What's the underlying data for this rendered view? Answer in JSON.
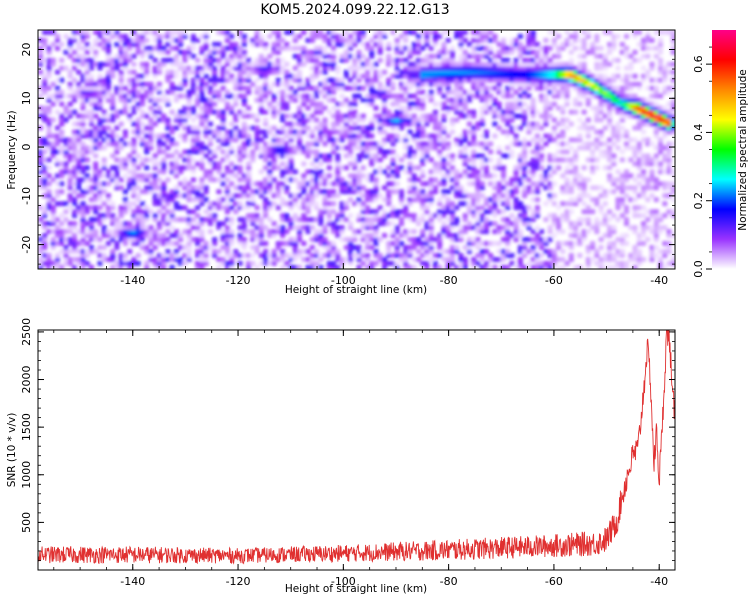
{
  "figure_title": "KOM5.2024.099.22.12.G13",
  "chart_data": [
    {
      "type": "heatmap",
      "title": "KOM5.2024.099.22.12.G13",
      "xlabel": "Height of straight line (km)",
      "ylabel": "Frequency (Hz)",
      "xlim": [
        -158,
        -37
      ],
      "ylim": [
        -25,
        24
      ],
      "x_ticks": [
        -140,
        -120,
        -100,
        -80,
        -60,
        -40
      ],
      "y_ticks": [
        -20,
        -10,
        0,
        10,
        20
      ],
      "x_tick_labels": [
        "-140",
        "-120",
        "-100",
        "-80",
        "-60",
        "-40"
      ],
      "y_tick_labels": [
        "-20",
        "-10",
        "0",
        "10",
        "20"
      ],
      "grid": false,
      "colormap": "gist_rainbow",
      "colorbar": {
        "label": "Normalized spectral amplitude",
        "range": [
          0.0,
          0.7
        ],
        "ticks": [
          0.0,
          0.2,
          0.4,
          0.6
        ],
        "tick_labels": [
          "0.0",
          "0.2",
          "0.4",
          "0.6"
        ],
        "colors": [
          "#ffffff",
          "#9933ff",
          "#0000ff",
          "#00ffff",
          "#00ff00",
          "#ffff00",
          "#ff8800",
          "#ff0000",
          "#ff0088"
        ]
      },
      "ridge": [
        {
          "x": -85,
          "y": 15,
          "amplitude": 0.25
        },
        {
          "x": -75,
          "y": 15.5,
          "amplitude": 0.22
        },
        {
          "x": -66,
          "y": 15,
          "amplitude": 0.18
        },
        {
          "x": -60,
          "y": 15,
          "amplitude": 0.3
        },
        {
          "x": -57,
          "y": 15,
          "amplitude": 0.55
        },
        {
          "x": -53,
          "y": 13,
          "amplitude": 0.45
        },
        {
          "x": -50,
          "y": 11,
          "amplitude": 0.4
        },
        {
          "x": -47,
          "y": 9,
          "amplitude": 0.3
        },
        {
          "x": -44,
          "y": 8,
          "amplitude": 0.6
        },
        {
          "x": -41,
          "y": 6.5,
          "amplitude": 0.68
        },
        {
          "x": -38,
          "y": 5,
          "amplitude": 0.6
        }
      ],
      "isolated_blobs": [
        {
          "x": -90,
          "y": 5.5,
          "amplitude": 0.25
        },
        {
          "x": -140,
          "y": -17.5,
          "amplitude": 0.25
        },
        {
          "x": -112,
          "y": -0.5,
          "amplitude": 0.18
        },
        {
          "x": -115,
          "y": 16,
          "amplitude": 0.15
        },
        {
          "x": -148,
          "y": 11,
          "amplitude": 0.12
        }
      ],
      "background": "speckled low-amplitude noise, values 0.02-0.12"
    },
    {
      "type": "line",
      "xlabel": "Height of straight line (km)",
      "ylabel": "SNR (10 * v/v)",
      "xlim": [
        -158,
        -37
      ],
      "ylim": [
        0,
        2520
      ],
      "x_ticks": [
        -140,
        -120,
        -100,
        -80,
        -60,
        -40
      ],
      "y_ticks": [
        500,
        1000,
        1500,
        2000,
        2500
      ],
      "x_tick_labels": [
        "-140",
        "-120",
        "-100",
        "-80",
        "-60",
        "-40"
      ],
      "y_tick_labels": [
        "500",
        "1000",
        "1500",
        "2000",
        "2500"
      ],
      "grid": false,
      "line_color": "#e03030",
      "series": [
        {
          "x": [
            -158,
            -140,
            -120,
            -100,
            -80,
            -62,
            -55,
            -52,
            -50,
            -48,
            -47,
            -46,
            -45,
            -44,
            -43,
            -42.3,
            -41.7,
            -41,
            -40.5,
            -40,
            -39.5,
            -39,
            -38.6,
            -38,
            -37.5,
            -37
          ],
          "y": [
            160,
            160,
            150,
            175,
            210,
            250,
            270,
            280,
            320,
            520,
            780,
            1000,
            1200,
            1280,
            1850,
            2330,
            2050,
            1100,
            1450,
            950,
            1400,
            2000,
            2480,
            2420,
            1800,
            1650
          ],
          "noise_amplitude": [
            90,
            90,
            80,
            90,
            110,
            120,
            130,
            130,
            140,
            150,
            150,
            150,
            150,
            150,
            150,
            150,
            150,
            150,
            150,
            150,
            150,
            150,
            150,
            150,
            150,
            150
          ]
        }
      ]
    }
  ]
}
